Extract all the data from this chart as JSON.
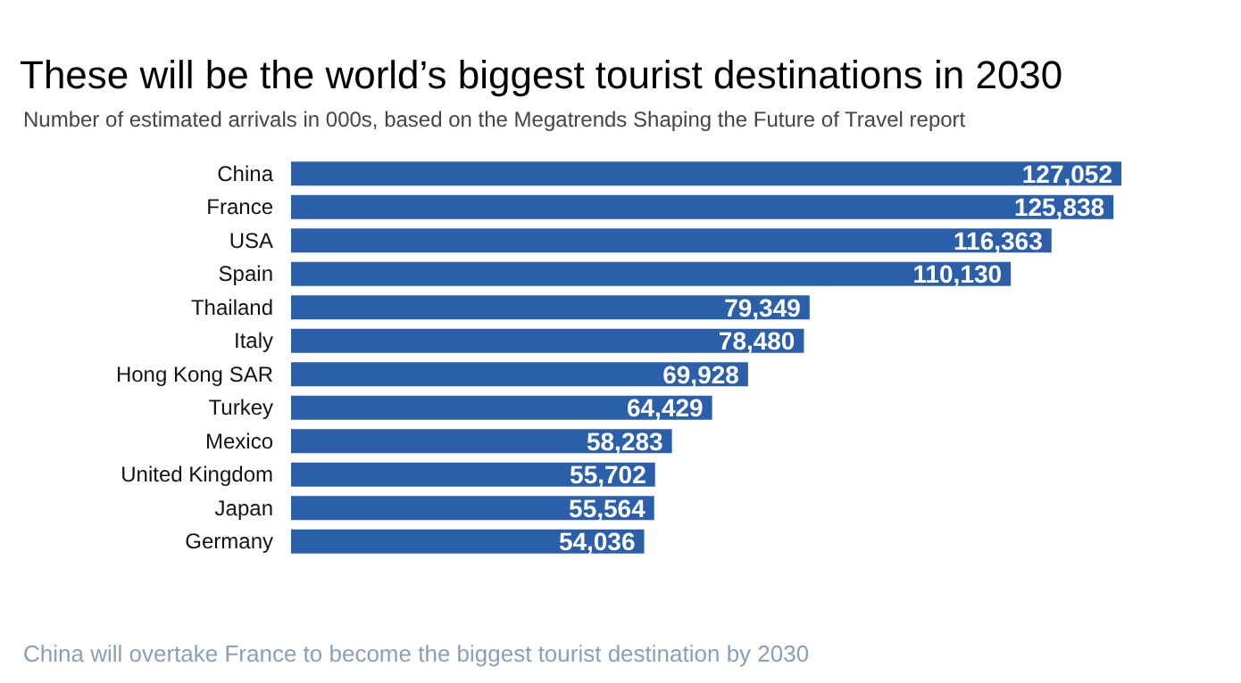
{
  "chart_data": {
    "type": "bar",
    "orientation": "horizontal",
    "title": "These will be the world’s biggest tourist destinations in 2030",
    "subtitle": "Number of estimated arrivals in 000s, based on the Megatrends Shaping the Future of Travel report",
    "categories": [
      "China",
      "France",
      "USA",
      "Spain",
      "Thailand",
      "Italy",
      "Hong Kong SAR",
      "Turkey",
      "Mexico",
      "United Kingdom",
      "Japan",
      "Germany"
    ],
    "values": [
      127052,
      125838,
      116363,
      110130,
      79349,
      78480,
      69928,
      64429,
      58283,
      55702,
      55564,
      54036
    ],
    "value_labels": [
      "127,052",
      "125,838",
      "116,363",
      "110,130",
      "79,349",
      "78,480",
      "69,928",
      "64,429",
      "58,283",
      "55,702",
      "55,564",
      "54,036"
    ],
    "color": "#2b5faa",
    "annotations": [
      "China will overtake France to become the biggest tourist destination by 2030"
    ]
  }
}
